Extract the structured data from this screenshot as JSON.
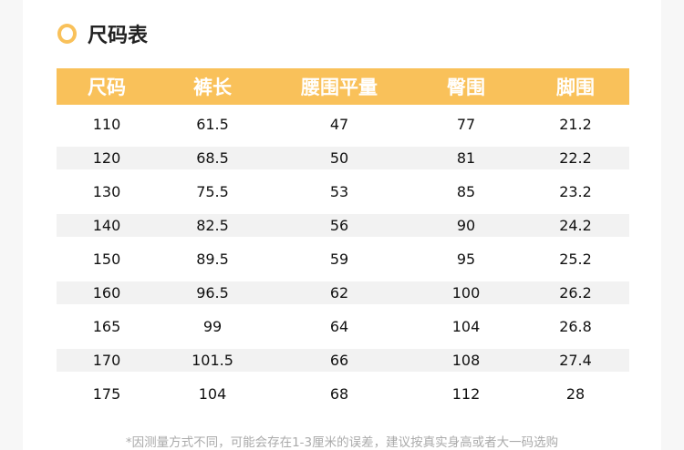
{
  "title": "尺码表",
  "accent_color": "#f9c15a",
  "icon": "ring-icon",
  "table": {
    "headers": [
      "尺码",
      "裤长",
      "腰围平量",
      "臀围",
      "脚围"
    ],
    "rows": [
      [
        "110",
        "61.5",
        "47",
        "77",
        "21.2"
      ],
      [
        "120",
        "68.5",
        "50",
        "81",
        "22.2"
      ],
      [
        "130",
        "75.5",
        "53",
        "85",
        "23.2"
      ],
      [
        "140",
        "82.5",
        "56",
        "90",
        "24.2"
      ],
      [
        "150",
        "89.5",
        "59",
        "95",
        "25.2"
      ],
      [
        "160",
        "96.5",
        "62",
        "100",
        "26.2"
      ],
      [
        "165",
        "99",
        "64",
        "104",
        "26.8"
      ],
      [
        "170",
        "101.5",
        "66",
        "108",
        "27.4"
      ],
      [
        "175",
        "104",
        "68",
        "112",
        "28"
      ]
    ]
  },
  "note": "*因测量方式不同，可能会存在1-3厘米的误差，建议按真实身高或者大一码选购"
}
